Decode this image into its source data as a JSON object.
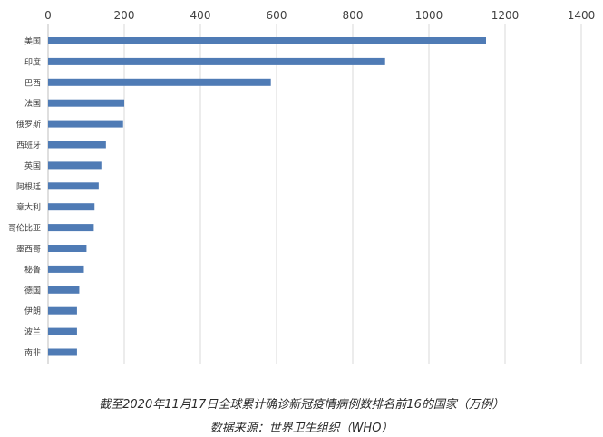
{
  "caption": {
    "title": "截至2020年11月17日全球累计确诊新冠疫情病例数排名前16的国家（万例）",
    "source": "数据来源：世界卫生组织（WHO）"
  },
  "chart_data": {
    "type": "bar",
    "orientation": "horizontal",
    "categories": [
      "美国",
      "印度",
      "巴西",
      "法国",
      "俄罗斯",
      "西班牙",
      "英国",
      "阿根廷",
      "意大利",
      "哥伦比亚",
      "墨西哥",
      "秘鲁",
      "德国",
      "伊朗",
      "波兰",
      "南非"
    ],
    "values": [
      1150,
      885,
      585,
      200,
      197,
      152,
      140,
      133,
      122,
      120,
      101,
      94,
      82,
      76,
      76,
      76
    ],
    "xlim": [
      0,
      1400
    ],
    "xticks": [
      0,
      200,
      400,
      600,
      800,
      1000,
      1200,
      1400
    ],
    "x_axis_position": "top",
    "grid": true,
    "bar_color": "#4f7bb5",
    "title": "",
    "xlabel": "",
    "ylabel": ""
  }
}
